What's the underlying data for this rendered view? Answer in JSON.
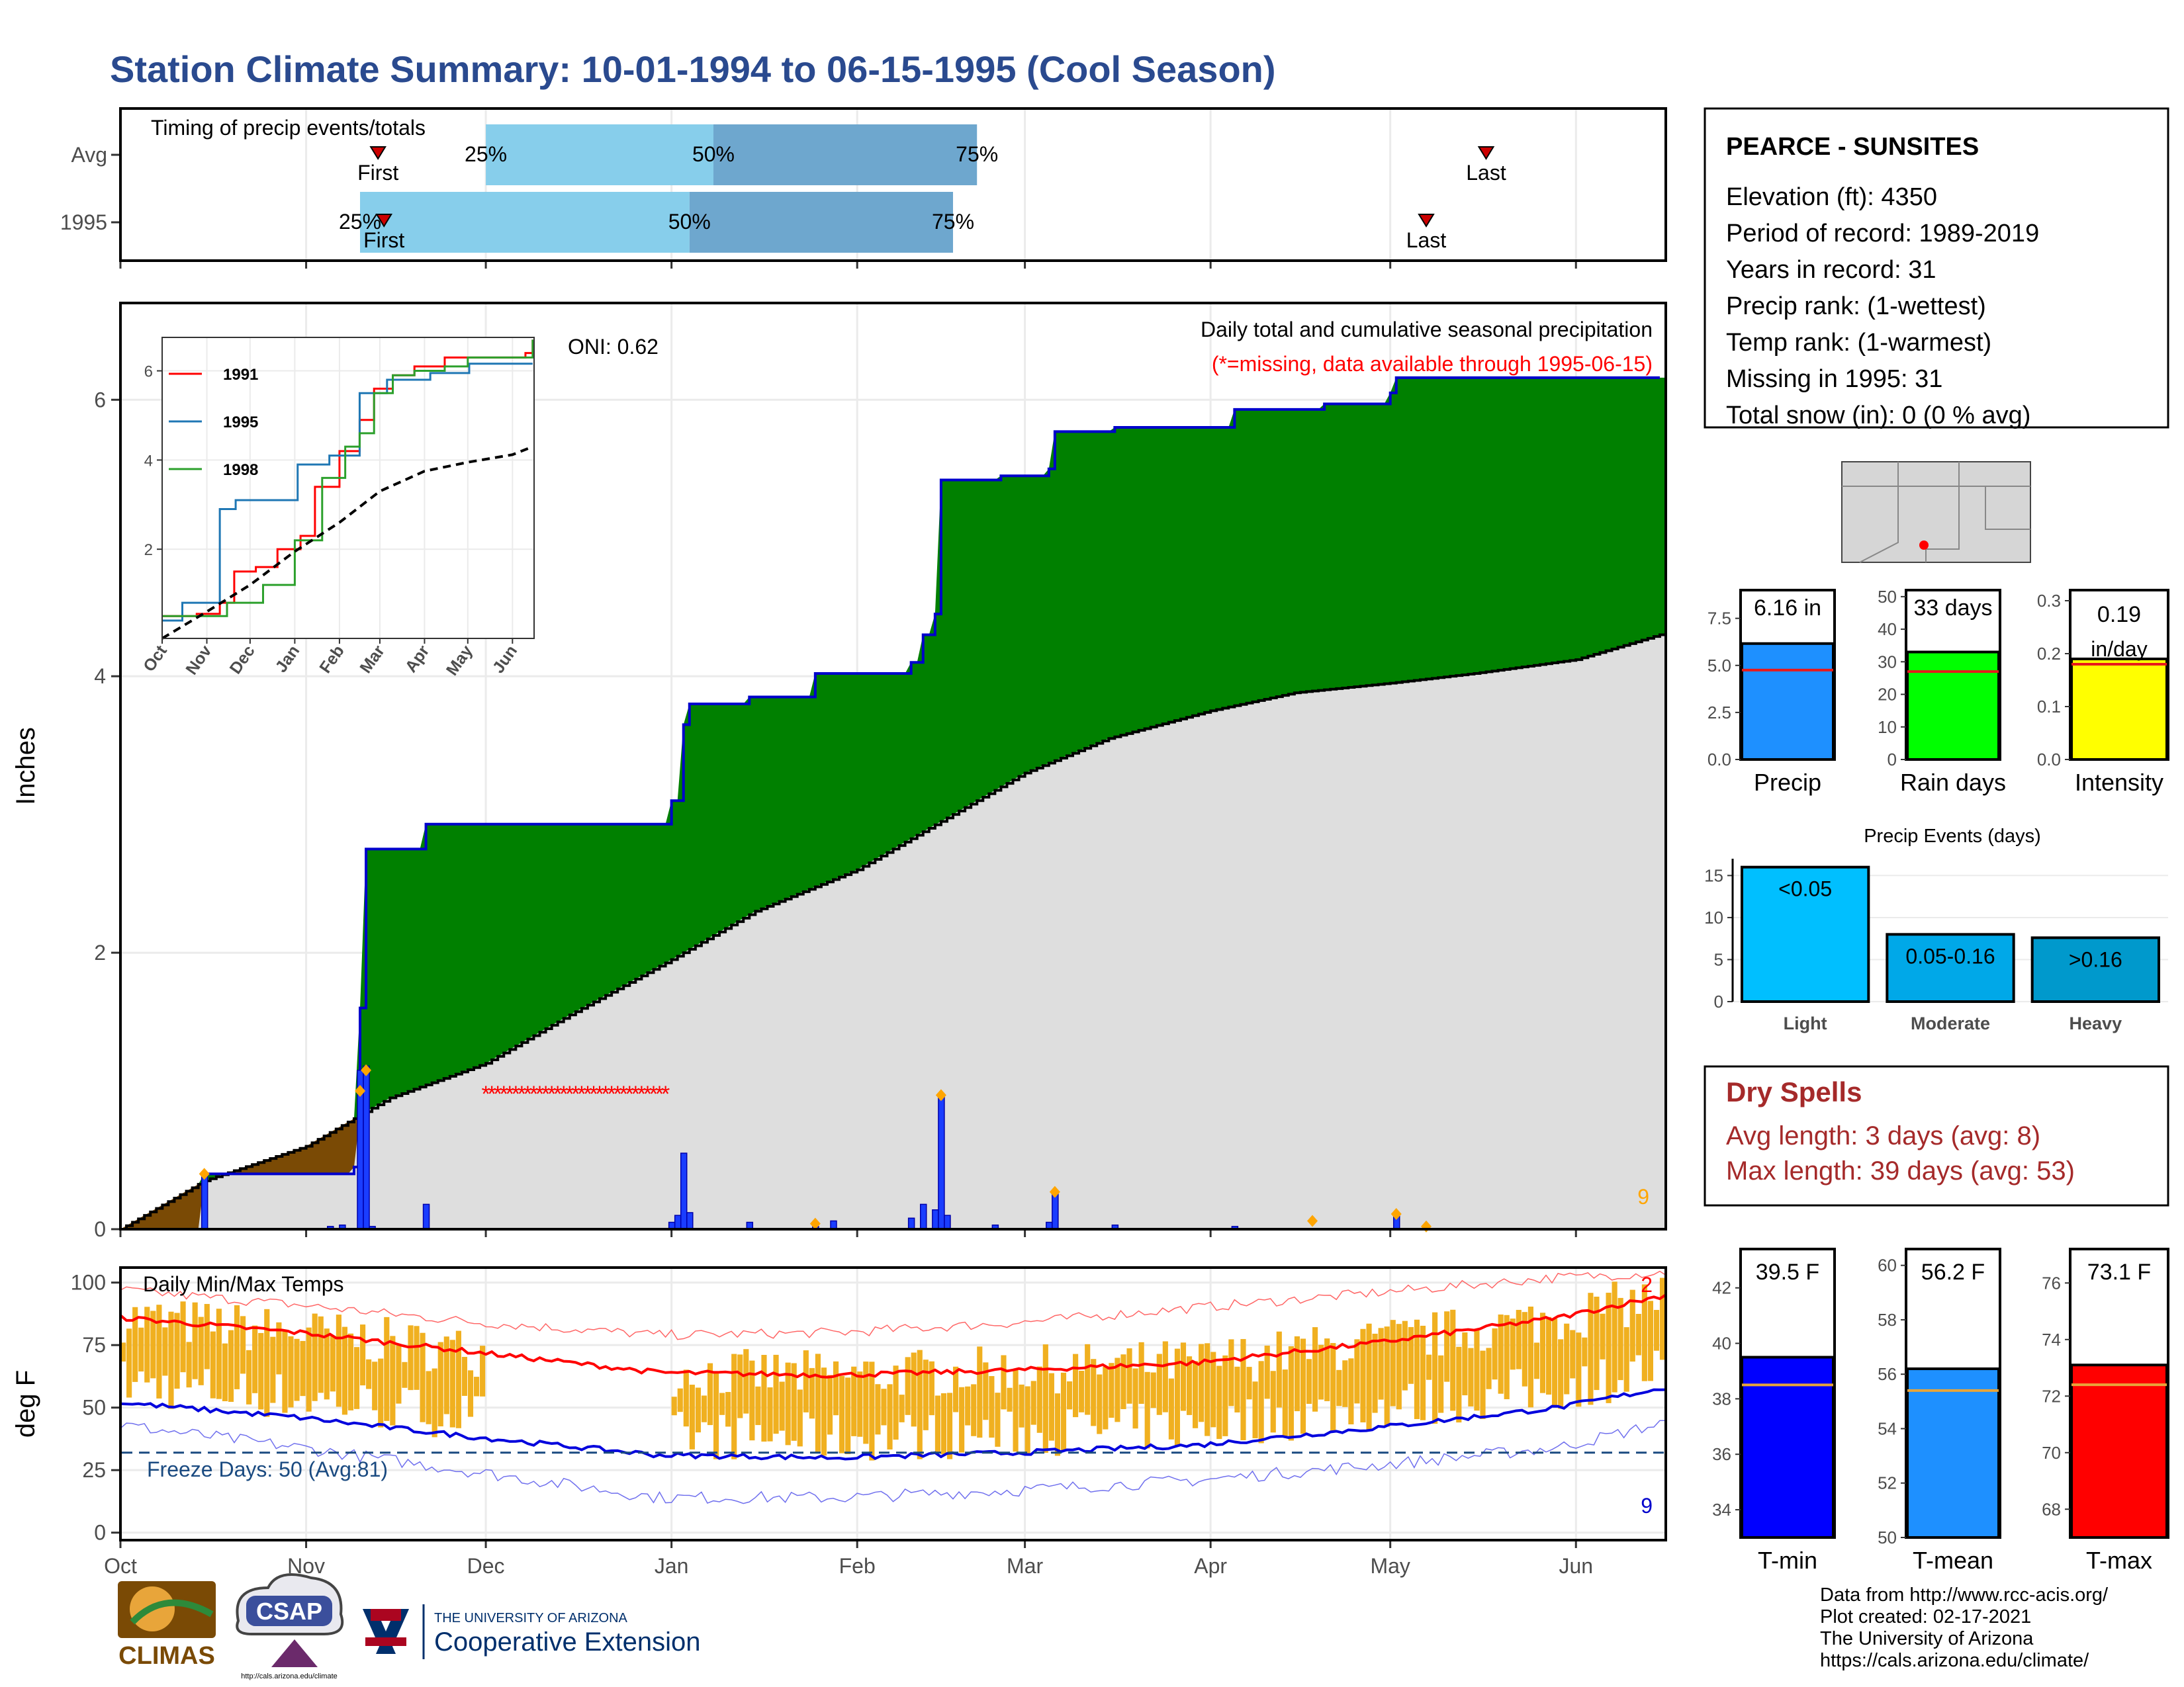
{
  "title": "Station Climate Summary: 10-01-1994 to 06-15-1995 (Cool Season)",
  "station": {
    "name": "PEARCE - SUNSITES",
    "lines": [
      "Elevation (ft): 4350",
      "Period of record: 1989-2019",
      "Years in record: 31",
      "Precip rank:  (1-wettest)",
      "Temp rank:  (1-warmest)",
      "Missing in 1995: 31",
      "Total snow (in): 0 (0 % avg)"
    ]
  },
  "colors": {
    "cumulative_fill": "#008000",
    "normal_fill": "#dedede",
    "deficit_fill": "#7a4a05",
    "daily_bars": "#1a3dff",
    "temp_bars": "#f0b020",
    "missing": "#ff0000",
    "tmax_line": "#ff0000",
    "tmin_line": "#0000dd",
    "freeze_line": "#1a4a80"
  },
  "dry_spells": {
    "title": "Dry Spells",
    "avg": "Avg length: 3 days (avg: 8)",
    "max": "Max length: 39 days (avg: 53)"
  },
  "credits": [
    "Data from http://www.rcc-acis.org/",
    "Plot created: 02-17-2021",
    "The University of Arizona",
    "https://cals.arizona.edu/climate/"
  ],
  "logos": {
    "climas": "CLIMAS",
    "csap": "CSAP",
    "csap_url": "http://cals.arizona.edu/climate",
    "ua_line1": "THE UNIVERSITY OF ARIZONA",
    "ua_line2": "Cooperative Extension"
  },
  "chart_data": [
    {
      "type": "bar",
      "name": "timing",
      "title": "Timing of precip events/totals",
      "x_ticks": [
        "Oct",
        "Nov",
        "Dec",
        "Jan",
        "Feb",
        "Mar",
        "Apr",
        "May",
        "Jun"
      ],
      "rows": [
        {
          "label": "Avg",
          "first": "1994-11-13",
          "p25": "1994-12-01",
          "p50": "1995-01-08",
          "p75": "1995-02-21",
          "last": "1995-05-17",
          "labels": {
            "first": "First",
            "p25": "25%",
            "p50": "50%",
            "p75": "75%",
            "last": "Last"
          }
        },
        {
          "label": "1995",
          "first": "1994-11-14",
          "p25": "1994-11-10",
          "p50": "1995-01-04",
          "p75": "1995-02-17",
          "last": "1995-05-07",
          "labels": {
            "first": "First",
            "p25": "25%",
            "p50": "50%",
            "p75": "75%",
            "last": "Last"
          }
        }
      ]
    },
    {
      "type": "area",
      "name": "precipitation",
      "title": "Daily total and cumulative seasonal precipitation",
      "subtitle": "(*=missing, data available through 1995-06-15)",
      "ylabel": "Inches",
      "oni": "ONI: 0.62",
      "ylim": [
        0,
        6.7
      ],
      "y_ticks": [
        0,
        2,
        4,
        6
      ],
      "x_ticks": [
        "Oct",
        "Nov",
        "Dec",
        "Jan",
        "Feb",
        "Mar",
        "Apr",
        "May",
        "Jun"
      ],
      "corner_count": "9",
      "cumulative_1995": [
        [
          "1994-10-01",
          0
        ],
        [
          "1994-10-15",
          0.4
        ],
        [
          "1994-11-09",
          0.45
        ],
        [
          "1994-11-10",
          1.6
        ],
        [
          "1994-11-11",
          2.75
        ],
        [
          "1994-11-21",
          2.93
        ],
        [
          "1994-12-31",
          2.93
        ],
        [
          "1995-01-01",
          3.1
        ],
        [
          "1995-01-03",
          3.65
        ],
        [
          "1995-01-04",
          3.8
        ],
        [
          "1995-01-14",
          3.85
        ],
        [
          "1995-01-25",
          4.02
        ],
        [
          "1995-02-10",
          4.1
        ],
        [
          "1995-02-12",
          4.3
        ],
        [
          "1995-02-14",
          4.45
        ],
        [
          "1995-02-15",
          5.42
        ],
        [
          "1995-02-25",
          5.45
        ],
        [
          "1995-03-05",
          5.5
        ],
        [
          "1995-03-06",
          5.77
        ],
        [
          "1995-03-16",
          5.8
        ],
        [
          "1995-04-05",
          5.93
        ],
        [
          "1995-04-20",
          5.97
        ],
        [
          "1995-05-01",
          6.05
        ],
        [
          "1995-05-02",
          6.16
        ],
        [
          "1995-06-15",
          6.16
        ]
      ],
      "cumulative_avg": [
        [
          "1994-10-01",
          0
        ],
        [
          "1994-10-15",
          0.35
        ],
        [
          "1994-11-01",
          0.6
        ],
        [
          "1994-11-15",
          0.95
        ],
        [
          "1994-12-01",
          1.2
        ],
        [
          "1994-12-15",
          1.55
        ],
        [
          "1995-01-01",
          1.95
        ],
        [
          "1995-01-15",
          2.3
        ],
        [
          "1995-02-01",
          2.6
        ],
        [
          "1995-02-15",
          2.95
        ],
        [
          "1995-03-01",
          3.3
        ],
        [
          "1995-03-15",
          3.55
        ],
        [
          "1995-04-01",
          3.75
        ],
        [
          "1995-04-15",
          3.88
        ],
        [
          "1995-05-01",
          3.95
        ],
        [
          "1995-05-15",
          4.02
        ],
        [
          "1995-06-01",
          4.12
        ],
        [
          "1995-06-15",
          4.3
        ]
      ],
      "daily_1995": [
        [
          "1994-10-15",
          0.4
        ],
        [
          "1994-11-05",
          0.02
        ],
        [
          "1994-11-07",
          0.03
        ],
        [
          "1994-11-10",
          1.15
        ],
        [
          "1994-11-11",
          1.18
        ],
        [
          "1994-11-12",
          0.02
        ],
        [
          "1994-11-21",
          0.18
        ],
        [
          "1995-01-01",
          0.05
        ],
        [
          "1995-01-02",
          0.1
        ],
        [
          "1995-01-03",
          0.55
        ],
        [
          "1995-01-04",
          0.12
        ],
        [
          "1995-01-14",
          0.05
        ],
        [
          "1995-01-25",
          0.02
        ],
        [
          "1995-01-28",
          0.06
        ],
        [
          "1995-02-10",
          0.08
        ],
        [
          "1995-02-12",
          0.18
        ],
        [
          "1995-02-14",
          0.14
        ],
        [
          "1995-02-15",
          0.97
        ],
        [
          "1995-02-16",
          0.1
        ],
        [
          "1995-02-24",
          0.03
        ],
        [
          "1995-03-05",
          0.05
        ],
        [
          "1995-03-06",
          0.27
        ],
        [
          "1995-03-16",
          0.03
        ],
        [
          "1995-04-05",
          0.02
        ],
        [
          "1995-05-02",
          0.1
        ]
      ],
      "missing_range": [
        "1994-12-01",
        "1994-12-31"
      ],
      "missing_y": 1.0,
      "markers": [
        [
          "1994-10-15",
          0.4
        ],
        [
          "1994-11-10",
          1.0
        ],
        [
          "1994-11-11",
          1.15
        ],
        [
          "1995-01-25",
          0.04
        ],
        [
          "1995-02-15",
          0.97
        ],
        [
          "1995-03-06",
          0.27
        ],
        [
          "1995-04-18",
          0.06
        ],
        [
          "1995-05-02",
          0.11
        ],
        [
          "1995-05-07",
          0.02
        ]
      ]
    },
    {
      "type": "line",
      "name": "inset",
      "series": [
        {
          "name": "1991",
          "values": [
            [
              "1994-10-01",
              0.5
            ],
            [
              "1994-10-25",
              0.55
            ],
            [
              "1994-11-10",
              0.8
            ],
            [
              "1994-11-20",
              1.5
            ],
            [
              "1994-12-05",
              1.6
            ],
            [
              "1994-12-20",
              2.0
            ],
            [
              "1995-01-05",
              2.3
            ],
            [
              "1995-01-15",
              3.4
            ],
            [
              "1995-02-01",
              4.2
            ],
            [
              "1995-02-15",
              4.9
            ],
            [
              "1995-02-25",
              5.6
            ],
            [
              "1995-03-10",
              5.9
            ],
            [
              "1995-03-25",
              6.1
            ],
            [
              "1995-04-15",
              6.3
            ],
            [
              "1995-05-15",
              6.3
            ],
            [
              "1995-06-10",
              6.4
            ],
            [
              "1995-06-15",
              6.7
            ]
          ]
        },
        {
          "name": "1995",
          "values": [
            [
              "1994-10-01",
              0.4
            ],
            [
              "1994-10-15",
              0.8
            ],
            [
              "1994-11-10",
              2.9
            ],
            [
              "1994-11-21",
              3.1
            ],
            [
              "1995-01-03",
              3.9
            ],
            [
              "1995-01-25",
              4.1
            ],
            [
              "1995-02-15",
              5.5
            ],
            [
              "1995-03-06",
              5.8
            ],
            [
              "1995-04-05",
              5.95
            ],
            [
              "1995-05-02",
              6.16
            ],
            [
              "1995-06-15",
              6.16
            ]
          ]
        },
        {
          "name": "1998",
          "values": [
            [
              "1994-10-01",
              0.5
            ],
            [
              "1994-10-20",
              0.5
            ],
            [
              "1994-11-15",
              0.8
            ],
            [
              "1994-12-10",
              1.2
            ],
            [
              "1995-01-01",
              2.2
            ],
            [
              "1995-01-20",
              3.6
            ],
            [
              "1995-02-05",
              4.3
            ],
            [
              "1995-02-15",
              4.6
            ],
            [
              "1995-02-25",
              5.5
            ],
            [
              "1995-03-10",
              5.9
            ],
            [
              "1995-03-25",
              6.0
            ],
            [
              "1995-04-15",
              6.1
            ],
            [
              "1995-05-01",
              6.3
            ],
            [
              "1995-06-05",
              6.3
            ],
            [
              "1995-06-15",
              6.7
            ]
          ]
        }
      ],
      "normal": [
        [
          "1994-10-01",
          0
        ],
        [
          "1994-11-01",
          0.6
        ],
        [
          "1994-12-01",
          1.2
        ],
        [
          "1995-01-01",
          1.95
        ],
        [
          "1995-02-01",
          2.6
        ],
        [
          "1995-03-01",
          3.3
        ],
        [
          "1995-04-01",
          3.75
        ],
        [
          "1995-05-01",
          3.95
        ],
        [
          "1995-06-01",
          4.12
        ],
        [
          "1995-06-15",
          4.3
        ]
      ],
      "y_ticks": [
        2,
        4,
        6
      ],
      "x_ticks": [
        "Oct",
        "Nov",
        "Dec",
        "Jan",
        "Feb",
        "Mar",
        "Apr",
        "May",
        "Jun"
      ]
    },
    {
      "type": "bar",
      "name": "temperature",
      "title": "Daily Min/Max Temps",
      "ylabel": "deg F",
      "ylim": [
        -3,
        106
      ],
      "y_ticks": [
        0,
        25,
        50,
        75,
        100
      ],
      "x_ticks": [
        "Oct",
        "Nov",
        "Dec",
        "Jan",
        "Feb",
        "Mar",
        "Apr",
        "May",
        "Jun"
      ],
      "freeze_line": 32,
      "freeze_text": "Freeze Days: 50 (Avg:81)",
      "corner_top": "2",
      "corner_bottom": "9",
      "missing_range": [
        "1994-12-01",
        "1994-12-31"
      ],
      "tmax_avg_knots": [
        [
          0,
          86
        ],
        [
          30,
          80
        ],
        [
          60,
          72
        ],
        [
          90,
          64
        ],
        [
          120,
          63
        ],
        [
          150,
          65
        ],
        [
          180,
          68
        ],
        [
          210,
          76
        ],
        [
          240,
          86
        ],
        [
          258,
          95
        ]
      ],
      "tmin_avg_knots": [
        [
          0,
          52
        ],
        [
          30,
          46
        ],
        [
          60,
          38
        ],
        [
          90,
          31
        ],
        [
          120,
          30
        ],
        [
          150,
          32
        ],
        [
          180,
          35
        ],
        [
          210,
          42
        ],
        [
          240,
          50
        ],
        [
          258,
          58
        ]
      ],
      "tmax_record_knots": [
        [
          0,
          97
        ],
        [
          30,
          91
        ],
        [
          60,
          84
        ],
        [
          90,
          79
        ],
        [
          120,
          80
        ],
        [
          150,
          84
        ],
        [
          180,
          90
        ],
        [
          210,
          96
        ],
        [
          240,
          102
        ],
        [
          258,
          104
        ]
      ],
      "tmin_record_knots": [
        [
          0,
          43
        ],
        [
          30,
          34
        ],
        [
          60,
          24
        ],
        [
          90,
          14
        ],
        [
          120,
          14
        ],
        [
          150,
          17
        ],
        [
          180,
          21
        ],
        [
          210,
          27
        ],
        [
          240,
          34
        ],
        [
          258,
          44
        ]
      ]
    },
    {
      "type": "bar",
      "name": "precip_mini",
      "categories": [
        "Precip"
      ],
      "values": [
        6.16
      ],
      "normal": 4.75,
      "label": "6.16 in",
      "ylim": [
        0,
        9
      ],
      "y_ticks": [
        0.0,
        2.5,
        5.0,
        7.5
      ],
      "y_tick_labels": [
        "0.0",
        "2.5",
        "5.0",
        "7.5"
      ],
      "color": "#1e90ff"
    },
    {
      "type": "bar",
      "name": "raindays_mini",
      "categories": [
        "Rain days"
      ],
      "values": [
        33
      ],
      "normal": 27,
      "label": "33 days",
      "ylim": [
        0,
        52
      ],
      "y_ticks": [
        0,
        10,
        20,
        30,
        40,
        50
      ],
      "y_tick_labels": [
        "0",
        "10",
        "20",
        "30",
        "40",
        "50"
      ],
      "color": "#00ff00"
    },
    {
      "type": "bar",
      "name": "intensity_mini",
      "categories": [
        "Intensity"
      ],
      "values": [
        0.19
      ],
      "normal": 0.18,
      "label": "0.19",
      "label2": "in/day",
      "ylim": [
        0,
        0.32
      ],
      "y_ticks": [
        0.0,
        0.1,
        0.2,
        0.3
      ],
      "y_tick_labels": [
        "0.0",
        "0.1",
        "0.2",
        "0.3"
      ],
      "color": "#ffff00"
    },
    {
      "type": "bar",
      "name": "precip_events",
      "title": "Precip Events (days)",
      "categories": [
        "Light",
        "Moderate",
        "Heavy"
      ],
      "bar_labels": [
        "<0.05",
        "0.05-0.16",
        ">0.16"
      ],
      "values": [
        16,
        8,
        7.6
      ],
      "ylim": [
        0,
        17
      ],
      "y_ticks": [
        0,
        5,
        10,
        15
      ],
      "colors": [
        "#00bfff",
        "#00a8e8",
        "#0099cc"
      ]
    },
    {
      "type": "bar",
      "name": "tmin_mini",
      "categories": [
        "T-min"
      ],
      "values": [
        39.5
      ],
      "normal": 38.5,
      "label": "39.5 F",
      "ylim": [
        33,
        43.4
      ],
      "y_ticks": [
        34,
        36,
        38,
        40,
        42
      ],
      "color": "#0000ff"
    },
    {
      "type": "bar",
      "name": "tmean_mini",
      "categories": [
        "T-mean"
      ],
      "values": [
        56.2
      ],
      "normal": 55.4,
      "label": "56.2 F",
      "ylim": [
        50,
        60.6
      ],
      "y_ticks": [
        50,
        52,
        54,
        56,
        58,
        60
      ],
      "color": "#1e90ff"
    },
    {
      "type": "bar",
      "name": "tmax_mini",
      "categories": [
        "T-max"
      ],
      "values": [
        73.1
      ],
      "normal": 72.4,
      "label": "73.1 F",
      "ylim": [
        67,
        77.2
      ],
      "y_ticks": [
        68,
        70,
        72,
        74,
        76
      ],
      "color": "#ff0000"
    }
  ]
}
